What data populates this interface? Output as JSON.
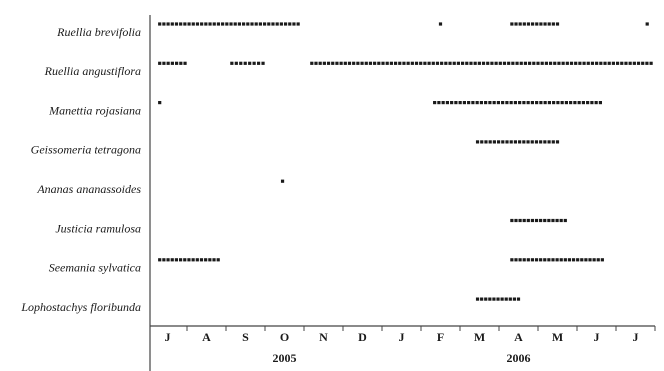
{
  "chart_data": {
    "type": "range-dots",
    "categories": [
      "J",
      "A",
      "S",
      "O",
      "N",
      "D",
      "J",
      "F",
      "M",
      "A",
      "M",
      "J",
      "J"
    ],
    "xlim": [
      0,
      13
    ],
    "xticks": [
      0,
      1,
      2,
      3,
      4,
      5,
      6,
      7,
      8,
      9,
      10,
      11,
      12,
      13
    ],
    "xgroups": [
      {
        "value": 3.5,
        "label": "2005"
      },
      {
        "value": 9.5,
        "label": "2006"
      }
    ],
    "color": "#1a1a1a",
    "series": [
      {
        "name": "Ruellia brevifolia",
        "ranges": [
          [
            0.3,
            3.85
          ],
          [
            7.5,
            7.5
          ],
          [
            9.33,
            10.5
          ],
          [
            12.8,
            12.8
          ]
        ]
      },
      {
        "name": "Ruellia angustiflora",
        "ranges": [
          [
            0.3,
            0.95
          ],
          [
            2.15,
            2.95
          ],
          [
            4.2,
            12.9
          ]
        ]
      },
      {
        "name": "Manettia rojasiana",
        "ranges": [
          [
            0.3,
            0.3
          ],
          [
            7.35,
            11.6
          ]
        ]
      },
      {
        "name": "Geissomeria tetragona",
        "ranges": [
          [
            8.45,
            10.5
          ]
        ]
      },
      {
        "name": "Ananas ananassoides",
        "ranges": [
          [
            3.45,
            3.45
          ]
        ]
      },
      {
        "name": "Justicia ramulosa",
        "ranges": [
          [
            9.33,
            10.7
          ]
        ]
      },
      {
        "name": "Seemania sylvatica",
        "ranges": [
          [
            0.3,
            1.8
          ],
          [
            9.33,
            11.65
          ]
        ]
      },
      {
        "name": "Lophostachys floribunda",
        "ranges": [
          [
            8.45,
            9.5
          ]
        ]
      }
    ]
  }
}
